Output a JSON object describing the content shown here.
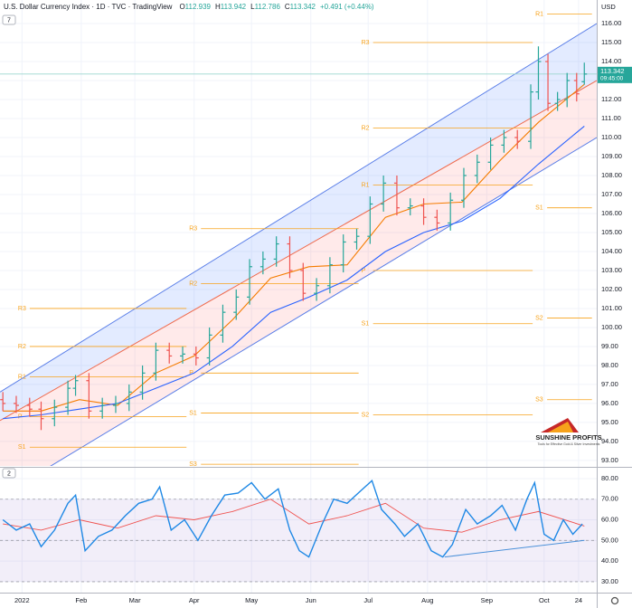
{
  "header": {
    "title": "U.S. Dollar Currency Index · 1D · TVC · TradingView",
    "ohlc": [
      {
        "key": "O",
        "text": "112.939"
      },
      {
        "key": "H",
        "text": "113.942"
      },
      {
        "key": "L",
        "text": "112.786"
      },
      {
        "key": "C",
        "text": "113.342"
      }
    ],
    "change": "+0.491 (+0.44%)",
    "currency": "USD",
    "pane_labels": [
      "7",
      "2"
    ]
  },
  "logo": {
    "name": "SUNSHINE PROFITS",
    "tagline": "Tools for Effective Gold & Silver Investments"
  },
  "chart_data": {
    "type": "ohlc",
    "xlim": [
      -11.5,
      300.5
    ],
    "ylim": [
      92.71,
      117.24
    ],
    "xticks": [
      {
        "value": 0,
        "label": "2022"
      },
      {
        "value": 31,
        "label": "Feb"
      },
      {
        "value": 59,
        "label": "Mar"
      },
      {
        "value": 90,
        "label": "Apr"
      },
      {
        "value": 120,
        "label": "May"
      },
      {
        "value": 151,
        "label": "Jun"
      },
      {
        "value": 181,
        "label": "Jul"
      },
      {
        "value": 212,
        "label": "Aug"
      },
      {
        "value": 243,
        "label": "Sep"
      },
      {
        "value": 273,
        "label": "Oct"
      },
      {
        "value": 291,
        "label": "24"
      }
    ],
    "yticks": [
      {
        "value": 93,
        "label": "93.00"
      },
      {
        "value": 94,
        "label": "94.00"
      },
      {
        "value": 95,
        "label": "95.00"
      },
      {
        "value": 96,
        "label": "96.00"
      },
      {
        "value": 97,
        "label": "97.00"
      },
      {
        "value": 98,
        "label": "98.00"
      },
      {
        "value": 99,
        "label": "99.00"
      },
      {
        "value": 100,
        "label": "100.00"
      },
      {
        "value": 101,
        "label": "101.00"
      },
      {
        "value": 102,
        "label": "102.00"
      },
      {
        "value": 103,
        "label": "103.00"
      },
      {
        "value": 104,
        "label": "104.00"
      },
      {
        "value": 105,
        "label": "105.00"
      },
      {
        "value": 106,
        "label": "106.00"
      },
      {
        "value": 107,
        "label": "107.00"
      },
      {
        "value": 108,
        "label": "108.00"
      },
      {
        "value": 109,
        "label": "109.00"
      },
      {
        "value": 110,
        "label": "110.00"
      },
      {
        "value": 111,
        "label": "111.00"
      },
      {
        "value": 112,
        "label": "112.00"
      },
      {
        "value": 113,
        "label": "113.00"
      },
      {
        "value": 114,
        "label": "114.00"
      },
      {
        "value": 115,
        "label": "115.00"
      },
      {
        "value": 116,
        "label": "116.00"
      }
    ],
    "up_color": "#26a69a",
    "down_color": "#ef5350",
    "x": [
      -10,
      -3,
      4,
      10,
      17,
      24,
      28,
      35,
      42,
      49,
      56,
      63,
      70,
      77,
      84,
      91,
      98,
      105,
      112,
      119,
      126,
      133,
      140,
      147,
      154,
      161,
      168,
      175,
      182,
      189,
      196,
      203,
      210,
      217,
      224,
      231,
      238,
      245,
      252,
      259,
      266,
      270,
      275,
      280,
      285,
      290,
      294
    ],
    "open": [
      96.2,
      96.0,
      95.9,
      95.7,
      95.2,
      95.8,
      96.8,
      97.2,
      95.6,
      95.9,
      96.0,
      96.6,
      97.6,
      98.8,
      98.5,
      98.6,
      98.4,
      99.6,
      100.8,
      101.6,
      103.2,
      103.6,
      104.4,
      103.0,
      101.8,
      102.2,
      103.3,
      104.5,
      104.8,
      106.5,
      107.6,
      106.3,
      106.4,
      105.8,
      105.5,
      106.7,
      108.0,
      108.7,
      109.6,
      110.0,
      109.8,
      112.4,
      114.0,
      111.8,
      112.0,
      113.0,
      112.939
    ],
    "high": [
      96.6,
      96.4,
      96.3,
      96.1,
      96.2,
      97.2,
      97.5,
      97.6,
      96.3,
      96.4,
      97.0,
      98.0,
      99.2,
      99.2,
      99.0,
      99.0,
      100.0,
      101.2,
      102.0,
      103.6,
      104.0,
      104.8,
      104.8,
      103.4,
      102.6,
      103.7,
      104.9,
      105.2,
      106.9,
      108.0,
      108.0,
      106.8,
      106.8,
      106.2,
      107.1,
      108.4,
      109.1,
      110.0,
      110.4,
      110.4,
      112.8,
      114.8,
      114.4,
      112.4,
      113.4,
      113.4,
      113.942
    ],
    "low": [
      95.6,
      95.5,
      95.3,
      94.6,
      94.8,
      95.4,
      96.4,
      95.2,
      95.2,
      95.5,
      95.6,
      96.2,
      97.2,
      98.1,
      98.1,
      98.0,
      98.0,
      99.2,
      100.4,
      101.2,
      102.8,
      103.2,
      102.6,
      101.4,
      101.4,
      101.8,
      102.9,
      104.1,
      104.4,
      106.1,
      105.9,
      105.9,
      105.4,
      105.1,
      105.1,
      106.3,
      107.6,
      108.3,
      109.2,
      109.4,
      109.4,
      112.0,
      111.4,
      111.4,
      111.6,
      111.9,
      112.786
    ],
    "close": [
      96.0,
      95.9,
      95.7,
      95.2,
      95.8,
      96.8,
      97.2,
      95.6,
      95.9,
      96.0,
      96.6,
      97.6,
      98.8,
      98.5,
      98.6,
      98.4,
      99.6,
      100.8,
      101.6,
      103.2,
      103.6,
      104.4,
      103.0,
      101.8,
      102.2,
      103.3,
      104.5,
      104.8,
      106.5,
      107.6,
      106.3,
      106.4,
      105.8,
      105.5,
      106.7,
      108.0,
      108.7,
      109.6,
      110.0,
      109.8,
      112.4,
      114.0,
      111.8,
      112.0,
      113.0,
      112.3,
      113.342
    ],
    "last_label": "113.342",
    "countdown": "09:45:00",
    "moving_averages": [
      {
        "color": "#f57c00",
        "x": [
          -10,
          10,
          30,
          50,
          70,
          90,
          110,
          130,
          150,
          170,
          190,
          210,
          230,
          250,
          270,
          294
        ],
        "values": [
          95.6,
          95.6,
          96.2,
          95.9,
          97.6,
          98.5,
          100.4,
          102.6,
          103.2,
          103.3,
          105.8,
          106.5,
          106.6,
          108.8,
          110.8,
          112.8
        ]
      },
      {
        "color": "#2962ff",
        "x": [
          -10,
          10,
          30,
          50,
          70,
          90,
          110,
          130,
          150,
          170,
          190,
          210,
          230,
          250,
          270,
          294
        ],
        "values": [
          95.2,
          95.4,
          95.7,
          96.0,
          96.8,
          97.6,
          99.0,
          100.8,
          101.6,
          102.5,
          104.0,
          105.0,
          105.6,
          106.8,
          108.6,
          110.6
        ]
      }
    ],
    "channel": {
      "x": [
        -11.5,
        300.5
      ],
      "upper": [
        96.6,
        116.0
      ],
      "middle": [
        95.1,
        113.0
      ],
      "lower": [
        91.1,
        110.0
      ]
    },
    "pivot_color": "#f7a21b",
    "pivots": [
      {
        "x_from": -3.5,
        "x_to": 86,
        "levels": [
          {
            "label": "R3",
            "value": 101.0
          },
          {
            "label": "R2",
            "value": 99.0
          },
          {
            "label": "R1",
            "value": 97.4
          },
          {
            "label": "P",
            "value": 95.3
          },
          {
            "label": "S1",
            "value": 93.7
          }
        ]
      },
      {
        "x_from": 86,
        "x_to": 176,
        "levels": [
          {
            "label": "R3",
            "value": 105.2
          },
          {
            "label": "R2",
            "value": 102.3
          },
          {
            "label": "P",
            "value": 97.6
          },
          {
            "label": "S1",
            "value": 95.5
          },
          {
            "label": "S3",
            "value": 92.8
          }
        ]
      },
      {
        "x_from": 176,
        "x_to": 267,
        "levels": [
          {
            "label": "R3",
            "value": 115.0
          },
          {
            "label": "R2",
            "value": 110.5
          },
          {
            "label": "R1",
            "value": 107.5
          },
          {
            "label": "P",
            "value": 103.0
          },
          {
            "label": "S1",
            "value": 100.2
          },
          {
            "label": "S2",
            "value": 95.4
          }
        ]
      },
      {
        "x_from": 267,
        "x_to": 298,
        "levels": [
          {
            "label": "R1",
            "value": 116.5
          },
          {
            "label": "S1",
            "value": 106.3
          },
          {
            "label": "S2",
            "value": 100.5
          },
          {
            "label": "S3",
            "value": 96.2
          }
        ]
      }
    ],
    "rsi": {
      "ylim": [
        24.7,
        84.8
      ],
      "color": "#1e88e5",
      "yticks": [
        {
          "value": 30,
          "label": "30.00"
        },
        {
          "value": 40,
          "label": "40.00"
        },
        {
          "value": 50,
          "label": "50.00"
        },
        {
          "value": 60,
          "label": "60.00"
        },
        {
          "value": 70,
          "label": "70.00"
        },
        {
          "value": 80,
          "label": "80.00"
        }
      ],
      "bands": [
        30,
        50,
        70
      ],
      "x": [
        -10,
        -3,
        4,
        10,
        17,
        24,
        28,
        33,
        40,
        47,
        54,
        61,
        68,
        72,
        78,
        85,
        92,
        99,
        106,
        113,
        120,
        127,
        134,
        140,
        145,
        150,
        157,
        163,
        170,
        177,
        183,
        188,
        195,
        200,
        207,
        214,
        220,
        225,
        232,
        238,
        245,
        251,
        258,
        264,
        268,
        273,
        278,
        283,
        288,
        293
      ],
      "values": [
        60,
        55,
        58,
        47,
        55,
        68,
        72,
        45,
        52,
        55,
        62,
        68,
        70,
        76,
        55,
        60,
        50,
        62,
        72,
        73,
        78,
        70,
        75,
        55,
        45,
        42,
        58,
        70,
        68,
        74,
        79,
        65,
        58,
        52,
        58,
        45,
        42,
        48,
        65,
        58,
        62,
        67,
        55,
        70,
        78,
        53,
        50,
        60,
        53,
        58
      ],
      "ma": {
        "color": "#ef5350",
        "x": [
          -10,
          10,
          30,
          50,
          70,
          90,
          110,
          130,
          150,
          170,
          190,
          210,
          230,
          250,
          270,
          294
        ],
        "values": [
          58,
          55,
          60,
          56,
          62,
          60,
          64,
          70,
          58,
          62,
          68,
          56,
          54,
          60,
          64,
          57
        ]
      },
      "trendline": {
        "color": "#4a90d9",
        "x": [
          221,
          294
        ],
        "values": [
          42,
          50
        ]
      }
    }
  }
}
